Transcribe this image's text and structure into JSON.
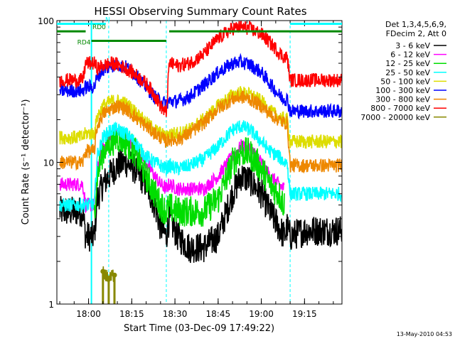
{
  "chart_data": {
    "type": "line",
    "title": "HESSI Observing Summary Count Rates",
    "xlabel": "Start Time (03-Dec-09 17:49:22)",
    "ylabel": "Count Rate (s⁻¹ detector⁻¹)",
    "footer": "13-May-2010 04:53",
    "yscale": "log",
    "ylim": [
      1,
      100
    ],
    "xlim": [
      "17:49",
      "19:28"
    ],
    "x_ticks": [
      "18:00",
      "18:15",
      "18:30",
      "18:45",
      "19:00",
      "19:15"
    ],
    "y_tick_labels": [
      {
        "value": 1,
        "label": "1"
      },
      {
        "value": 10,
        "label": "10"
      },
      {
        "value": 100,
        "label": "100"
      }
    ],
    "grid": false,
    "legend_header": [
      "Det 1,3,4,5,6,9,",
      "FDecim 2, Att 0"
    ],
    "legend_position": "right",
    "series": [
      {
        "name": "3 - 6 keV",
        "color": "#000000",
        "x": [
          "17:50",
          "17:58",
          "17:59",
          "18:02",
          "18:03",
          "18:05",
          "18:08",
          "18:10",
          "18:13",
          "18:16",
          "18:20",
          "18:23",
          "18:25",
          "18:27",
          "18:28",
          "18:31",
          "18:35",
          "18:40",
          "18:45",
          "18:50",
          "18:53",
          "18:56",
          "19:00",
          "19:03",
          "19:06",
          "19:08",
          "19:09",
          "19:10",
          "19:15",
          "19:20",
          "19:28"
        ],
        "y": [
          4.5,
          4.5,
          3,
          3,
          5.5,
          7,
          8.5,
          9.5,
          10,
          9,
          7,
          5,
          3.5,
          3,
          4,
          3,
          2.5,
          2.5,
          3,
          6,
          8,
          7.5,
          6,
          4.5,
          3.5,
          3,
          3.5,
          3,
          3.3,
          3.3,
          3.3
        ]
      },
      {
        "name": "6 - 12 keV",
        "color": "#ff00ff",
        "x": [
          "17:50",
          "17:58",
          "17:59",
          "18:02",
          "18:03",
          "18:05",
          "18:08",
          "18:10",
          "18:13",
          "18:16",
          "18:20",
          "18:23",
          "18:25",
          "18:27",
          "18:28",
          "18:31",
          "18:35",
          "18:40",
          "18:45",
          "18:50",
          "18:53",
          "18:56",
          "19:00",
          "19:03",
          "19:06",
          "19:08"
        ],
        "y": [
          7,
          7,
          5,
          5,
          9,
          13,
          15,
          16,
          15,
          13,
          10,
          8,
          7,
          6.5,
          7,
          6.5,
          6.5,
          6.5,
          8,
          11,
          13,
          12.5,
          10,
          8,
          7,
          6.5
        ]
      },
      {
        "name": "12 - 25 keV",
        "color": "#00dd00",
        "x": [
          "18:02",
          "18:03",
          "18:05",
          "18:08",
          "18:10",
          "18:13",
          "18:16",
          "18:20",
          "18:23",
          "18:25",
          "18:27",
          "18:28",
          "18:31",
          "18:35",
          "18:40",
          "18:45",
          "18:50",
          "18:53",
          "18:56",
          "19:00",
          "19:03",
          "19:06",
          "19:08"
        ],
        "y": [
          4.5,
          8,
          12,
          14,
          15,
          14,
          12,
          8,
          6,
          5,
          4.5,
          4.8,
          4.5,
          4.5,
          4.5,
          5.5,
          10,
          12,
          11.5,
          9,
          7,
          6,
          5
        ]
      },
      {
        "name": "25 - 50 keV",
        "color": "#00ffff",
        "x": [
          "17:50",
          "17:58",
          "17:59",
          "18:02",
          "18:03",
          "18:05",
          "18:08",
          "18:10",
          "18:13",
          "18:16",
          "18:20",
          "18:23",
          "18:25",
          "18:27",
          "18:28",
          "18:31",
          "18:35",
          "18:40",
          "18:45",
          "18:50",
          "18:53",
          "18:56",
          "19:00",
          "19:03",
          "19:06",
          "19:08",
          "19:09",
          "19:10",
          "19:15",
          "19:20",
          "19:28"
        ],
        "y": [
          5,
          5,
          5,
          5,
          11,
          15,
          17,
          17,
          16,
          14,
          11,
          10,
          9.5,
          9,
          9.5,
          9,
          9.5,
          10.5,
          13,
          17,
          18,
          17,
          14,
          12,
          11,
          10,
          10,
          6,
          6,
          6,
          6
        ]
      },
      {
        "name": "50 - 100 keV",
        "color": "#dddd00",
        "x": [
          "17:50",
          "17:58",
          "17:59",
          "18:02",
          "18:03",
          "18:05",
          "18:08",
          "18:10",
          "18:13",
          "18:16",
          "18:20",
          "18:23",
          "18:25",
          "18:27",
          "18:28",
          "18:31",
          "18:35",
          "18:40",
          "18:45",
          "18:50",
          "18:53",
          "18:56",
          "19:00",
          "19:03",
          "19:06",
          "19:08",
          "19:09",
          "19:10",
          "19:15",
          "19:20",
          "19:28"
        ],
        "y": [
          15,
          15,
          16,
          16,
          21,
          25,
          27,
          27,
          26,
          23,
          19,
          17,
          16,
          15,
          16,
          16,
          17,
          20,
          25,
          30,
          31,
          30,
          27,
          23,
          21,
          20,
          20,
          14,
          14,
          14,
          14
        ]
      },
      {
        "name": "100 - 300 keV",
        "color": "#0000ff",
        "x": [
          "17:50",
          "17:58",
          "17:59",
          "18:02",
          "18:03",
          "18:05",
          "18:08",
          "18:10",
          "18:13",
          "18:16",
          "18:20",
          "18:23",
          "18:25",
          "18:27",
          "18:28",
          "18:31",
          "18:35",
          "18:40",
          "18:45",
          "18:50",
          "18:53",
          "18:56",
          "19:00",
          "19:03",
          "19:06",
          "19:08",
          "19:09",
          "19:10",
          "19:15",
          "19:20",
          "19:28"
        ],
        "y": [
          32,
          32,
          34,
          34,
          40,
          45,
          48,
          49,
          47,
          42,
          34,
          29,
          27,
          26,
          27,
          27,
          29,
          35,
          43,
          50,
          51,
          49,
          43,
          36,
          30,
          28,
          28,
          23,
          23,
          23,
          23
        ]
      },
      {
        "name": "300 - 800 keV",
        "color": "#ee8800",
        "x": [
          "17:50",
          "17:58",
          "17:59",
          "18:02",
          "18:03",
          "18:05",
          "18:08",
          "18:10",
          "18:13",
          "18:16",
          "18:20",
          "18:23",
          "18:25",
          "18:27",
          "18:28",
          "18:31",
          "18:35",
          "18:40",
          "18:45",
          "18:50",
          "18:53",
          "18:56",
          "19:00",
          "19:03",
          "19:06",
          "19:08",
          "19:09",
          "19:10",
          "19:15",
          "19:20",
          "19:28"
        ],
        "y": [
          10,
          10,
          12,
          12,
          18,
          22,
          24,
          25,
          24,
          21,
          18,
          16,
          15,
          14,
          14.5,
          14.5,
          16,
          19,
          24,
          28,
          29,
          28,
          25,
          22,
          20,
          19,
          19,
          9.5,
          9.5,
          9.5,
          9.5
        ]
      },
      {
        "name": "800 - 7000 keV",
        "color": "#ff0000",
        "x": [
          "17:50",
          "17:58",
          "17:59",
          "18:02",
          "18:03",
          "18:05",
          "18:08",
          "18:10",
          "18:13",
          "18:16",
          "18:20",
          "18:23",
          "18:25",
          "18:27",
          "18:28",
          "18:31",
          "18:35",
          "18:40",
          "18:45",
          "18:50",
          "18:53",
          "18:56",
          "19:00",
          "19:03",
          "19:06",
          "19:08",
          "19:09",
          "19:10",
          "19:15",
          "19:20",
          "19:28"
        ],
        "y": [
          38,
          38,
          50,
          50,
          46,
          48,
          50,
          49,
          46,
          42,
          36,
          30,
          25,
          22,
          50,
          48,
          50,
          58,
          75,
          88,
          90,
          88,
          80,
          70,
          60,
          55,
          55,
          38,
          38,
          38,
          38
        ]
      },
      {
        "name": "7000 - 20000 keV",
        "color": "#888800",
        "x": [
          "18:05",
          "18:07",
          "18:09"
        ],
        "y": [
          1.7,
          1.5,
          1.6
        ]
      }
    ],
    "annotations": [
      {
        "label": "N",
        "color": "#00ffff",
        "x_start": "17:49",
        "x_end": "18:06",
        "level": 95
      },
      {
        "label": "",
        "color": "#00ffff",
        "x_start": "19:10",
        "x_end": "19:28",
        "level": 95
      },
      {
        "label": "RD0",
        "color": "#008800",
        "x_start": "17:49",
        "x_end": "17:59",
        "level": 84
      },
      {
        "label": "",
        "color": "#008800",
        "x_start": "18:28",
        "x_end": "19:28",
        "level": 84
      },
      {
        "label": "RD4",
        "color": "#008800",
        "x_start": "18:01",
        "x_end": "18:27",
        "level": 72
      }
    ],
    "vertical_markers": [
      {
        "x": "18:01",
        "color": "#00ffff",
        "style": "solid"
      },
      {
        "x": "18:07",
        "color": "#00ffff",
        "style": "dashed"
      },
      {
        "x": "18:27",
        "color": "#00ffff",
        "style": "dashed"
      },
      {
        "x": "19:10",
        "color": "#00ffff",
        "style": "dashed"
      },
      {
        "x": "19:28",
        "color": "#00ffff",
        "style": "dashed"
      }
    ]
  }
}
